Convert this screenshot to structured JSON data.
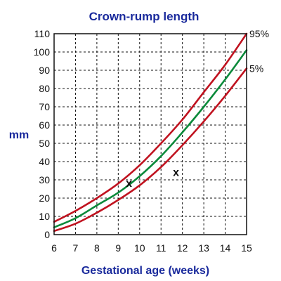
{
  "chart_data": {
    "type": "line",
    "title": "Crown-rump length",
    "xlabel": "Gestational age (weeks)",
    "ylabel": "mm",
    "xlim": [
      6,
      15
    ],
    "ylim": [
      0,
      110
    ],
    "x_ticks": [
      6,
      7,
      8,
      9,
      10,
      11,
      12,
      13,
      14,
      15
    ],
    "y_ticks": [
      0,
      10,
      20,
      30,
      40,
      50,
      60,
      70,
      80,
      90,
      100,
      110
    ],
    "grid": true,
    "grid_style": "dashed",
    "series": [
      {
        "name": "95%",
        "color": "#c0121f",
        "x": [
          6,
          7,
          8,
          9,
          10,
          11,
          12,
          13,
          14,
          15
        ],
        "y": [
          7,
          13,
          20,
          28,
          38,
          50,
          63,
          78,
          93,
          110
        ]
      },
      {
        "name": "",
        "color": "#0a8a3a",
        "x": [
          6,
          7,
          8,
          9,
          10,
          11,
          12,
          13,
          14,
          15
        ],
        "y": [
          4,
          9,
          16,
          23,
          32,
          43,
          56,
          70,
          85,
          101
        ]
      },
      {
        "name": "5%",
        "color": "#c0121f",
        "x": [
          6,
          7,
          8,
          9,
          10,
          11,
          12,
          13,
          14,
          15
        ],
        "y": [
          2,
          6,
          12,
          19,
          27,
          37,
          49,
          62,
          76,
          91
        ]
      }
    ],
    "markers": [
      {
        "label": "x",
        "x": 9.5,
        "y": 28
      },
      {
        "label": "x",
        "x": 11.7,
        "y": 34
      }
    ]
  }
}
